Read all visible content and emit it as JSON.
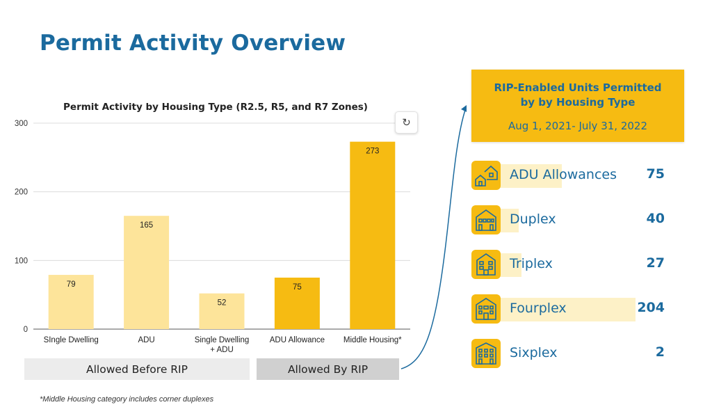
{
  "page": {
    "title": "Permit Activity Overview"
  },
  "colors": {
    "title": "#1b6a9e",
    "light_bar": "#fde49a",
    "dark_bar": "#f6bb12",
    "accent": "#f6bb12",
    "unit_bar_bg": "#fdf1c7"
  },
  "chart_data": {
    "type": "bar",
    "title": "Permit Activity by Housing Type (R2.5, R5, and R7 Zones)",
    "categories": [
      "SIngle Dwelling",
      "ADU",
      "Single Dwelling + ADU",
      "ADU Allowance",
      "Middle Housing*"
    ],
    "category_lines": [
      [
        "SIngle Dwelling"
      ],
      [
        "ADU"
      ],
      [
        "Single Dwelling",
        "+ ADU"
      ],
      [
        "ADU Allowance"
      ],
      [
        "Middle Housing*"
      ]
    ],
    "values": [
      79,
      165,
      52,
      75,
      273
    ],
    "bar_colors": [
      "#fde49a",
      "#fde49a",
      "#fde49a",
      "#f6bb12",
      "#f6bb12"
    ],
    "ylim": [
      0,
      300
    ],
    "yticks": [
      0,
      100,
      200,
      300
    ],
    "grid": true,
    "groups": [
      {
        "label": "Allowed Before RIP",
        "categories": [
          "SIngle Dwelling",
          "ADU",
          "Single Dwelling + ADU"
        ]
      },
      {
        "label": "Allowed By RIP",
        "categories": [
          "ADU Allowance",
          "Middle Housing*"
        ]
      }
    ]
  },
  "footnote": "*Middle Housing category includes corner duplexes",
  "rip_panel": {
    "title": "RIP-Enabled Units Permitted by by Housing Type",
    "dates": "Aug 1, 2021- July 31, 2022",
    "items": [
      {
        "label": "ADU Allowances",
        "value": 75,
        "icon": "two-houses-icon"
      },
      {
        "label": "Duplex",
        "value": 40,
        "icon": "duplex-building-icon"
      },
      {
        "label": "Triplex",
        "value": 27,
        "icon": "triplex-building-icon"
      },
      {
        "label": "Fourplex",
        "value": 204,
        "icon": "fourplex-building-icon"
      },
      {
        "label": "Sixplex",
        "value": 2,
        "icon": "sixplex-building-icon"
      }
    ]
  }
}
